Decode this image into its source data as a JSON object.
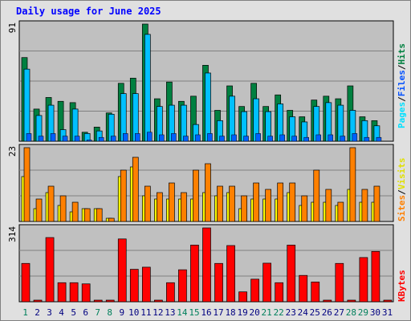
{
  "title": "Daily usage for June 2025",
  "colors": {
    "background": "#e0e0e0",
    "panel": "#c0c0c0",
    "title": "#0000ff",
    "hits": "#008040",
    "files": "#00c0ff",
    "pages": "#00e0ff",
    "sites": "#ff8000",
    "visits": "#ffff00",
    "kbytes": "#ff0000",
    "weekend_day": "#00805c",
    "weekday_day": "#000080"
  },
  "legend": {
    "pages": "Pages",
    "files": "Files",
    "hits": "Hits",
    "sep": "/",
    "sites": "Sites",
    "visits": "Visits",
    "kbytes": "KBytes"
  },
  "chart_data": {
    "type": "bar",
    "title": "Daily usage for June 2025",
    "days": [
      1,
      2,
      3,
      4,
      5,
      6,
      7,
      8,
      9,
      10,
      11,
      12,
      13,
      14,
      15,
      16,
      17,
      18,
      19,
      20,
      21,
      22,
      23,
      24,
      25,
      26,
      27,
      28,
      29,
      30,
      31
    ],
    "weekend_days": [
      1,
      7,
      8,
      14,
      15,
      21,
      22,
      28,
      29
    ],
    "panels": [
      {
        "name": "hits-files-pages",
        "max_label": "91",
        "ymax": 91,
        "series": [
          {
            "name": "Hits",
            "values": [
              65,
              25,
              34,
              31,
              30,
              7,
              11,
              22,
              45,
              49,
              91,
              33,
              46,
              31,
              35,
              59,
              24,
              43,
              27,
              45,
              27,
              36,
              24,
              19,
              32,
              35,
              33,
              43,
              19,
              16,
              0
            ]
          },
          {
            "name": "Files",
            "values": [
              56,
              20,
              28,
              9,
              25,
              6,
              8,
              21,
              37,
              37,
              83,
              27,
              28,
              28,
              13,
              53,
              16,
              35,
              23,
              33,
              23,
              29,
              19,
              15,
              27,
              30,
              28,
              24,
              16,
              12,
              0
            ]
          },
          {
            "name": "Pages",
            "values": [
              6,
              4,
              6,
              4,
              4,
              1,
              3,
              4,
              6,
              6,
              7,
              5,
              6,
              4,
              5,
              6,
              4,
              5,
              4,
              6,
              4,
              5,
              4,
              3,
              5,
              5,
              4,
              6,
              3,
              3,
              0
            ]
          }
        ]
      },
      {
        "name": "sites-visits",
        "max_label": "23",
        "ymax": 23,
        "series": [
          {
            "name": "Sites",
            "values": [
              23,
              7,
              11,
              8,
              6,
              4,
              4,
              1,
              16,
              20,
              11,
              9,
              12,
              9,
              16,
              18,
              11,
              11,
              8,
              12,
              10,
              12,
              12,
              8,
              16,
              10,
              6,
              23,
              10,
              11,
              0
            ]
          },
          {
            "name": "Visits",
            "values": [
              14,
              4,
              9,
              5,
              3,
              4,
              4,
              1,
              14,
              17,
              8,
              7,
              7,
              7,
              7,
              9,
              8,
              9,
              4,
              7,
              7,
              7,
              9,
              5,
              6,
              6,
              5,
              10,
              6,
              6,
              0
            ]
          }
        ]
      },
      {
        "name": "kbytes",
        "max_label": "314",
        "ymax": 314,
        "series": [
          {
            "name": "KBytes",
            "values": [
              163,
              0,
              273,
              81,
              81,
              76,
              0,
              0,
              267,
              138,
              147,
              0,
              81,
              136,
              241,
              314,
              163,
              239,
              42,
              96,
              164,
              81,
              241,
              112,
              84,
              0,
              163,
              0,
              188,
              214,
              0
            ]
          }
        ]
      }
    ]
  }
}
